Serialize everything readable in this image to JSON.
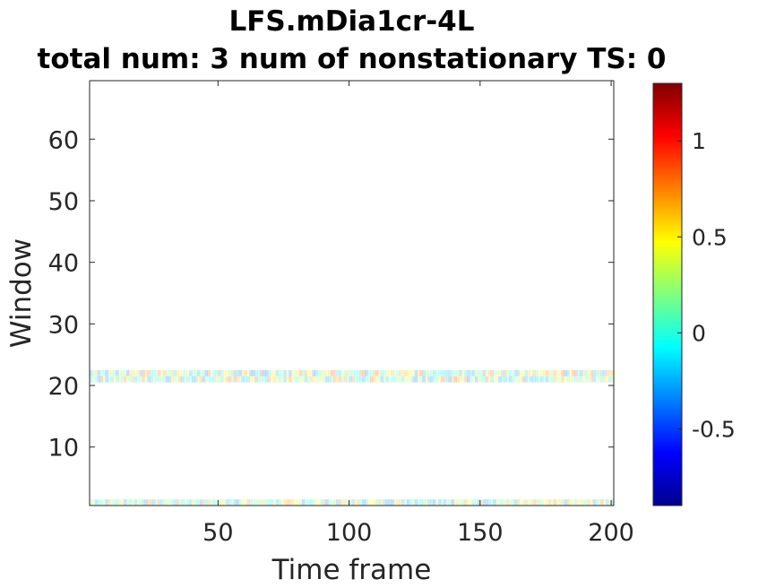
{
  "chart_data": {
    "type": "heatmap",
    "title": "LFS.mDia1cr-4L",
    "subtitle": "total num: 3 num of nonstationary TS: 0",
    "xlabel": "Time frame",
    "ylabel": "Window",
    "xlim": [
      1,
      201
    ],
    "ylim": [
      0.5,
      69.5
    ],
    "xticks": [
      50,
      100,
      150,
      200
    ],
    "yticks": [
      10,
      20,
      30,
      40,
      50,
      60
    ],
    "colormap": "jet",
    "clim": [
      -0.9,
      1.3
    ],
    "colorbar_ticks": [
      -0.5,
      0,
      0.5,
      1
    ],
    "colorbar_tick_labels": [
      "-0.5",
      "0",
      "0.5",
      "1"
    ],
    "background": "#ffffff",
    "rows": [
      {
        "window": 1,
        "value_range": [
          -0.4,
          0.8
        ],
        "note": "faint mottled band"
      },
      {
        "window": 21,
        "value_range": [
          -0.4,
          0.9
        ],
        "note": "faint mottled band"
      },
      {
        "window": 22,
        "value_range": [
          -0.4,
          0.9
        ],
        "note": "faint mottled band"
      }
    ],
    "other_windows": "blank (no data)"
  }
}
